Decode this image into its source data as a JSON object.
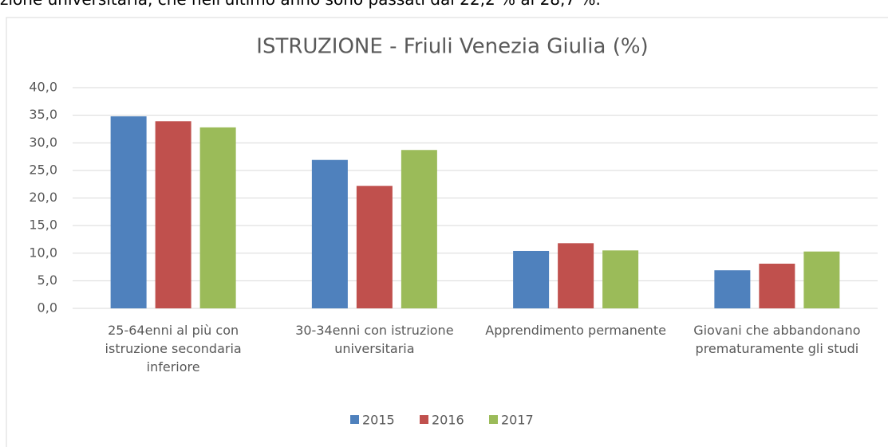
{
  "page_text": "zione universitaria, che nell'ultimo anno sono passati dal 22,2 % al 28,7 %.",
  "chart_data": {
    "type": "bar",
    "title": "ISTRUZIONE - Friuli Venezia Giulia (%)",
    "categories": [
      "25-64enni al più con istruzione secondaria inferiore",
      "30-34enni con istruzione universitaria",
      "Apprendimento permanente",
      "Giovani che abbandonano prematuramente gli studi"
    ],
    "series": [
      {
        "name": "2015",
        "color": "#4f81bd",
        "values": [
          34.8,
          26.9,
          10.4,
          6.9
        ]
      },
      {
        "name": "2016",
        "color": "#c0504d",
        "values": [
          33.9,
          22.2,
          11.8,
          8.1
        ]
      },
      {
        "name": "2017",
        "color": "#9bbb59",
        "values": [
          32.8,
          28.7,
          10.5,
          10.3
        ]
      }
    ],
    "ylim": [
      0,
      40
    ],
    "yticks": [
      {
        "value": 0,
        "label": "0,0"
      },
      {
        "value": 5,
        "label": "5,0"
      },
      {
        "value": 10,
        "label": "10,0"
      },
      {
        "value": 15,
        "label": "15,0"
      },
      {
        "value": 20,
        "label": "20,0"
      },
      {
        "value": 25,
        "label": "25,0"
      },
      {
        "value": 30,
        "label": "30,0"
      },
      {
        "value": 35,
        "label": "35,0"
      },
      {
        "value": 40,
        "label": "40,0"
      }
    ],
    "grid": true,
    "legend": "bottom"
  }
}
